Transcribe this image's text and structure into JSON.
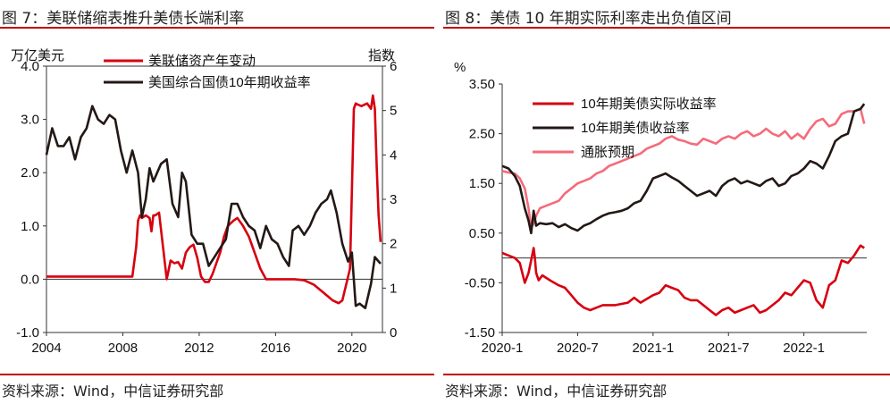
{
  "left": {
    "title": "图 7：美联储缩表推升美债长端利率",
    "source": "资料来源：Wind，中信证券研究部",
    "chart_data": {
      "type": "line",
      "ylabel": "万亿美元",
      "y2label": "指数",
      "ylim": [
        -1.0,
        4.0
      ],
      "y2lim": [
        0,
        6
      ],
      "yticks": [
        "4.0",
        "3.0",
        "2.0",
        "1.0",
        "0.0",
        "-1.0"
      ],
      "y2ticks": [
        "6",
        "5",
        "4",
        "3",
        "2",
        "1",
        "0"
      ],
      "xlim": [
        2004,
        2021.6
      ],
      "xticks": [
        "2004",
        "2008",
        "2012",
        "2016",
        "2020"
      ],
      "series": [
        {
          "name": "美联储资产年变动",
          "axis": "left",
          "color": "#d7000f",
          "x": [
            2004,
            2008.5,
            2008.7,
            2008.8,
            2008.9,
            2009.0,
            2009.2,
            2009.4,
            2009.5,
            2009.6,
            2009.7,
            2009.9,
            2010.3,
            2010.5,
            2010.7,
            2010.9,
            2011.1,
            2011.3,
            2011.5,
            2011.7,
            2011.9,
            2012.1,
            2012.3,
            2012.5,
            2012.7,
            2012.9,
            2013.1,
            2013.3,
            2013.5,
            2013.8,
            2014.0,
            2014.3,
            2014.6,
            2014.9,
            2015.2,
            2015.5,
            2016.0,
            2017.0,
            2017.5,
            2018.0,
            2018.5,
            2019.0,
            2019.3,
            2019.5,
            2019.7,
            2019.9,
            2020.1,
            2020.2,
            2020.3,
            2020.5,
            2020.8,
            2021.0,
            2021.1,
            2021.2,
            2021.3,
            2021.4,
            2021.5
          ],
          "y": [
            0.05,
            0.05,
            0.6,
            1.1,
            1.2,
            1.15,
            1.2,
            1.15,
            0.9,
            1.2,
            1.2,
            1.25,
            0.0,
            0.35,
            0.3,
            0.32,
            0.2,
            0.5,
            0.6,
            0.65,
            0.4,
            0.05,
            -0.05,
            -0.05,
            0.1,
            0.3,
            0.5,
            0.8,
            1.0,
            1.1,
            1.15,
            1.0,
            0.8,
            0.5,
            0.2,
            0.0,
            0.0,
            0.0,
            -0.02,
            -0.1,
            -0.25,
            -0.4,
            -0.45,
            -0.4,
            -0.1,
            0.2,
            3.2,
            3.3,
            3.28,
            3.25,
            3.3,
            3.2,
            3.45,
            3.2,
            2.1,
            1.2,
            0.7
          ]
        },
        {
          "name": "美国综合国债10年期收益率",
          "axis": "right",
          "color": "#231815",
          "x": [
            2004,
            2004.3,
            2004.6,
            2004.9,
            2005.2,
            2005.5,
            2005.8,
            2006.1,
            2006.4,
            2006.7,
            2007.0,
            2007.3,
            2007.6,
            2007.9,
            2008.2,
            2008.5,
            2008.8,
            2009.0,
            2009.2,
            2009.4,
            2009.6,
            2009.8,
            2010.0,
            2010.3,
            2010.6,
            2010.9,
            2011.1,
            2011.3,
            2011.6,
            2011.9,
            2012.2,
            2012.5,
            2012.8,
            2013.1,
            2013.4,
            2013.7,
            2014.0,
            2014.3,
            2014.6,
            2014.9,
            2015.2,
            2015.5,
            2015.8,
            2016.1,
            2016.4,
            2016.7,
            2016.9,
            2017.2,
            2017.5,
            2017.8,
            2018.1,
            2018.4,
            2018.7,
            2018.9,
            2019.2,
            2019.5,
            2019.8,
            2020.0,
            2020.2,
            2020.4,
            2020.7,
            2021.0,
            2021.2,
            2021.4,
            2021.5
          ],
          "y": [
            4.0,
            4.6,
            4.2,
            4.2,
            4.4,
            3.9,
            4.4,
            4.6,
            5.1,
            4.8,
            4.7,
            4.9,
            4.8,
            4.1,
            3.6,
            4.1,
            3.6,
            2.6,
            3.0,
            3.7,
            3.4,
            3.6,
            3.8,
            3.9,
            2.9,
            2.6,
            3.6,
            3.4,
            2.2,
            2.0,
            2.0,
            1.5,
            1.7,
            1.9,
            2.1,
            2.9,
            2.9,
            2.6,
            2.4,
            2.3,
            1.9,
            2.4,
            2.1,
            2.0,
            1.7,
            1.5,
            2.3,
            2.4,
            2.2,
            2.4,
            2.7,
            2.9,
            3.0,
            3.2,
            2.7,
            2.0,
            1.6,
            1.8,
            0.6,
            0.65,
            0.55,
            1.1,
            1.7,
            1.6,
            1.55
          ]
        }
      ]
    }
  },
  "right": {
    "title": "图 8：美债 10 年期实际利率走出负值区间",
    "source": "资料来源：Wind，中信证券研究部",
    "chart_data": {
      "type": "line",
      "ylabel": "%",
      "ylim": [
        -1.5,
        3.5
      ],
      "yticks": [
        "3.50",
        "2.50",
        "1.50",
        "0.50",
        "-0.50",
        "-1.50"
      ],
      "xlim": [
        0,
        29
      ],
      "xticks": [
        "2020-1",
        "2020-7",
        "2021-1",
        "2021-7",
        "2022-1"
      ],
      "series": [
        {
          "name": "10年期美债实际收益率",
          "color": "#d7000f",
          "x": [
            0,
            0.5,
            1.0,
            1.4,
            1.8,
            2.1,
            2.3,
            2.5,
            2.6,
            2.7,
            2.9,
            3.2,
            3.8,
            4.5,
            5,
            5.5,
            6,
            6.5,
            7,
            7.5,
            8,
            9,
            10,
            10.5,
            11,
            12,
            12.5,
            13,
            13.5,
            14,
            14.5,
            15,
            15.5,
            16,
            16.5,
            17,
            17.5,
            18,
            18.5,
            19,
            19.5,
            20,
            20.5,
            21,
            21.5,
            22,
            22.5,
            23,
            24,
            24.5,
            25,
            25.5,
            26,
            26.5,
            27,
            27.5,
            28,
            28.5,
            28.8
          ],
          "y": [
            0.1,
            0.05,
            0.0,
            -0.1,
            -0.5,
            -0.3,
            -0.05,
            0.2,
            0.0,
            -0.3,
            -0.45,
            -0.35,
            -0.45,
            -0.55,
            -0.6,
            -0.75,
            -0.9,
            -1.0,
            -1.05,
            -1.0,
            -0.95,
            -0.95,
            -0.9,
            -0.8,
            -0.9,
            -0.75,
            -0.7,
            -0.55,
            -0.6,
            -0.65,
            -0.8,
            -0.85,
            -0.85,
            -0.95,
            -1.05,
            -1.15,
            -1.05,
            -1.0,
            -1.1,
            -1.05,
            -1.0,
            -0.95,
            -1.1,
            -1.05,
            -0.95,
            -0.85,
            -0.7,
            -0.75,
            -0.45,
            -0.5,
            -0.85,
            -1.0,
            -0.55,
            -0.45,
            -0.05,
            -0.1,
            0.05,
            0.25,
            0.2
          ]
        },
        {
          "name": "10年期美债收益率",
          "color": "#231815",
          "x": [
            0,
            0.5,
            1.0,
            1.4,
            1.8,
            2.1,
            2.3,
            2.5,
            2.7,
            3,
            3.5,
            4,
            4.5,
            5,
            5.5,
            6,
            6.5,
            7,
            7.5,
            8,
            8.5,
            9,
            9.5,
            10,
            10.5,
            11,
            11.5,
            12,
            12.5,
            13,
            13.5,
            14,
            14.5,
            15,
            15.5,
            16,
            16.5,
            17,
            17.5,
            18,
            18.5,
            19,
            19.5,
            20,
            20.5,
            21,
            21.5,
            22,
            22.5,
            23,
            23.5,
            24,
            24.5,
            25,
            25.5,
            26,
            26.5,
            27,
            27.5,
            28,
            28.5,
            28.8
          ],
          "y": [
            1.85,
            1.8,
            1.65,
            1.45,
            1.0,
            0.75,
            0.5,
            0.95,
            0.65,
            0.7,
            0.68,
            0.7,
            0.62,
            0.68,
            0.6,
            0.55,
            0.65,
            0.7,
            0.78,
            0.85,
            0.9,
            0.92,
            0.95,
            1.0,
            1.1,
            1.15,
            1.35,
            1.6,
            1.65,
            1.7,
            1.62,
            1.55,
            1.45,
            1.35,
            1.25,
            1.3,
            1.35,
            1.25,
            1.45,
            1.55,
            1.6,
            1.5,
            1.55,
            1.5,
            1.45,
            1.55,
            1.6,
            1.45,
            1.5,
            1.65,
            1.7,
            1.8,
            1.95,
            1.9,
            1.8,
            2.05,
            2.35,
            2.45,
            2.5,
            2.95,
            3.0,
            3.1
          ]
        },
        {
          "name": "通胀预期",
          "color": "#f56b7a",
          "x": [
            0,
            0.5,
            1.0,
            1.4,
            1.8,
            2.1,
            2.3,
            2.5,
            2.7,
            3,
            3.5,
            4,
            4.5,
            5,
            5.5,
            6,
            6.5,
            7,
            7.5,
            8,
            8.5,
            9,
            9.5,
            10,
            10.5,
            11,
            11.5,
            12,
            12.5,
            13,
            13.5,
            14,
            14.5,
            15,
            15.5,
            16,
            16.5,
            17,
            17.5,
            18,
            18.5,
            19,
            19.5,
            20,
            20.5,
            21,
            21.5,
            22,
            22.5,
            23,
            23.5,
            24,
            24.5,
            25,
            25.5,
            26,
            26.5,
            27,
            27.5,
            28,
            28.5,
            28.8
          ],
          "y": [
            1.75,
            1.72,
            1.7,
            1.6,
            1.4,
            1.0,
            0.6,
            0.7,
            0.85,
            1.0,
            1.05,
            1.1,
            1.15,
            1.3,
            1.4,
            1.5,
            1.55,
            1.6,
            1.7,
            1.75,
            1.85,
            1.9,
            1.95,
            2.0,
            2.05,
            2.1,
            2.2,
            2.25,
            2.3,
            2.4,
            2.45,
            2.38,
            2.35,
            2.3,
            2.28,
            2.4,
            2.35,
            2.3,
            2.4,
            2.45,
            2.4,
            2.5,
            2.55,
            2.45,
            2.5,
            2.6,
            2.5,
            2.45,
            2.55,
            2.4,
            2.5,
            2.4,
            2.6,
            2.75,
            2.8,
            2.65,
            2.7,
            2.9,
            2.95,
            2.95,
            3.0,
            2.7
          ]
        }
      ]
    }
  }
}
